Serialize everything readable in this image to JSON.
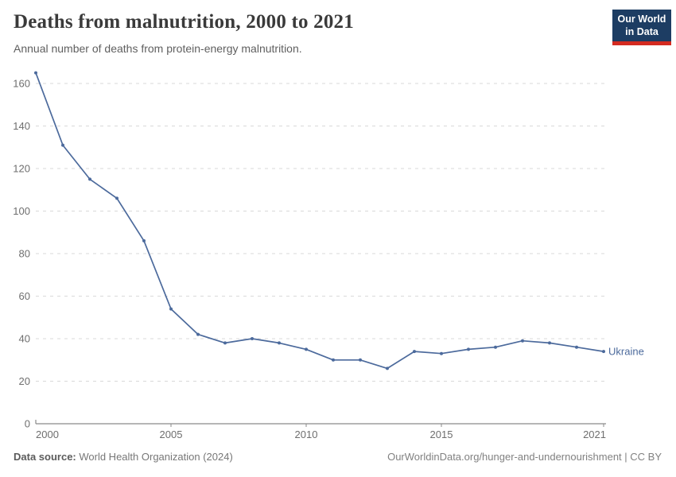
{
  "header": {
    "title": "Deaths from malnutrition, 2000 to 2021",
    "subtitle": "Annual number of deaths from protein-energy malnutrition.",
    "logo": {
      "line1": "Our World",
      "line2": "in Data"
    }
  },
  "chart_data": {
    "type": "line",
    "title": "Deaths from malnutrition, 2000 to 2021",
    "subtitle": "Annual number of deaths from protein-energy malnutrition.",
    "x": [
      2000,
      2001,
      2002,
      2003,
      2004,
      2005,
      2006,
      2007,
      2008,
      2009,
      2010,
      2011,
      2012,
      2013,
      2014,
      2015,
      2016,
      2017,
      2018,
      2019,
      2020,
      2021
    ],
    "series": [
      {
        "name": "Ukraine",
        "color": "#4C6A9C",
        "values": [
          165,
          131,
          115,
          106,
          86,
          54,
          42,
          38,
          40,
          38,
          35,
          30,
          30,
          26,
          34,
          33,
          35,
          36,
          39,
          38,
          36,
          34
        ]
      }
    ],
    "xlim": [
      2000,
      2021
    ],
    "ylim": [
      0,
      160
    ],
    "x_ticks": [
      2000,
      2005,
      2010,
      2015,
      2021
    ],
    "y_ticks": [
      0,
      20,
      40,
      60,
      80,
      100,
      120,
      140,
      160
    ],
    "grid": "horizontal dashed",
    "legend_position": "end-of-line label",
    "colors": {
      "grid": "#d9d9d9",
      "axis": "#8a8a8a",
      "tick_label": "#6e6e6e"
    }
  },
  "footer": {
    "source_label": "Data source:",
    "source_value": " World Health Organization (2024)",
    "credit": "OurWorldinData.org/hunger-and-undernourishment | CC BY"
  }
}
